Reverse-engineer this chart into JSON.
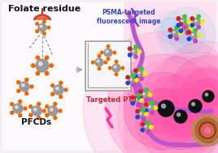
{
  "bg_color": "#f5eef5",
  "border_color": "#bb2222",
  "title_text": "Folate residue",
  "pfcds_text": "PFCDs",
  "psma_text": "PSMA-targeted\nfluorescent image",
  "ptt_text": "Targeted PTT",
  "title_color": "#111111",
  "psma_color": "#3344cc",
  "ptt_color": "#cc2233",
  "white_bg": "#ffffff",
  "membrane_color": "#bb55cc",
  "glow_pink": "#ff55aa",
  "blue_glow": "#99ccee",
  "yellow": "#eeee00",
  "green": "#33cc33",
  "red": "#cc2222",
  "blue": "#2244cc",
  "magenta": "#cc44bb",
  "gray_sphere": "#999999",
  "orange_spot": "#ee6600",
  "black": "#111111",
  "light_gray": "#cccccc",
  "folate_hat_color": "#dd3311",
  "arrow_color": "#aaaaaa",
  "purple_bolt": "#9944bb",
  "pink_bolt": "#ff3399"
}
